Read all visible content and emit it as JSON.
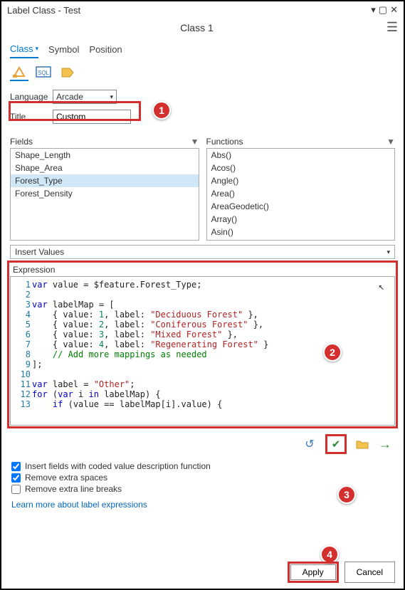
{
  "window": {
    "title": "Label Class - Test"
  },
  "subtitle": "Class 1",
  "tabs": {
    "class": "Class",
    "symbol": "Symbol",
    "position": "Position"
  },
  "form": {
    "language_label": "Language",
    "language_value": "Arcade",
    "title_label": "Title",
    "title_value": "Custom"
  },
  "fields": {
    "header": "Fields",
    "items": [
      "Shape_Length",
      "Shape_Area",
      "Forest_Type",
      "Forest_Density"
    ],
    "selected_index": 2
  },
  "functions": {
    "header": "Functions",
    "items": [
      "Abs()",
      "Acos()",
      "Angle()",
      "Area()",
      "AreaGeodetic()",
      "Array()",
      "Asin()"
    ]
  },
  "insert_values": "Insert Values",
  "expression_label": "Expression",
  "code": {
    "lines": [
      {
        "n": 1,
        "tokens": [
          {
            "t": "var ",
            "c": "kw"
          },
          {
            "t": "value = $feature.Forest_Type;",
            "c": "nm"
          }
        ]
      },
      {
        "n": 2,
        "tokens": []
      },
      {
        "n": 3,
        "tokens": [
          {
            "t": "var ",
            "c": "kw"
          },
          {
            "t": "labelMap = [",
            "c": "nm"
          }
        ]
      },
      {
        "n": 4,
        "tokens": [
          {
            "t": "    { value: ",
            "c": "nm"
          },
          {
            "t": "1",
            "c": "num"
          },
          {
            "t": ", label: ",
            "c": "nm"
          },
          {
            "t": "\"Deciduous Forest\"",
            "c": "str"
          },
          {
            "t": " },",
            "c": "nm"
          }
        ]
      },
      {
        "n": 5,
        "tokens": [
          {
            "t": "    { value: ",
            "c": "nm"
          },
          {
            "t": "2",
            "c": "num"
          },
          {
            "t": ", label: ",
            "c": "nm"
          },
          {
            "t": "\"Coniferous Forest\"",
            "c": "str"
          },
          {
            "t": " },",
            "c": "nm"
          }
        ]
      },
      {
        "n": 6,
        "tokens": [
          {
            "t": "    { value: ",
            "c": "nm"
          },
          {
            "t": "3",
            "c": "num"
          },
          {
            "t": ", label: ",
            "c": "nm"
          },
          {
            "t": "\"Mixed Forest\"",
            "c": "str"
          },
          {
            "t": " },",
            "c": "nm"
          }
        ]
      },
      {
        "n": 7,
        "tokens": [
          {
            "t": "    { value: ",
            "c": "nm"
          },
          {
            "t": "4",
            "c": "num"
          },
          {
            "t": ", label: ",
            "c": "nm"
          },
          {
            "t": "\"Regenerating Forest\"",
            "c": "str"
          },
          {
            "t": " }",
            "c": "nm"
          }
        ]
      },
      {
        "n": 8,
        "tokens": [
          {
            "t": "    // Add more mappings as needed",
            "c": "cmt"
          }
        ]
      },
      {
        "n": 9,
        "tokens": [
          {
            "t": "];",
            "c": "nm"
          }
        ]
      },
      {
        "n": 10,
        "tokens": []
      },
      {
        "n": 11,
        "tokens": [
          {
            "t": "var ",
            "c": "kw"
          },
          {
            "t": "label = ",
            "c": "nm"
          },
          {
            "t": "\"Other\"",
            "c": "str"
          },
          {
            "t": ";",
            "c": "nm"
          }
        ]
      },
      {
        "n": 12,
        "tokens": [
          {
            "t": "for ",
            "c": "kw"
          },
          {
            "t": "(",
            "c": "nm"
          },
          {
            "t": "var ",
            "c": "kw"
          },
          {
            "t": "i ",
            "c": "nm"
          },
          {
            "t": "in ",
            "c": "kw"
          },
          {
            "t": "labelMap) {",
            "c": "nm"
          }
        ]
      },
      {
        "n": 13,
        "tokens": [
          {
            "t": "    ",
            "c": "nm"
          },
          {
            "t": "if ",
            "c": "kw"
          },
          {
            "t": "(value == labelMap[i].value) {",
            "c": "nm"
          }
        ]
      }
    ]
  },
  "checks": {
    "coded": {
      "label": "Insert fields with coded value description function",
      "checked": true
    },
    "spaces": {
      "label": "Remove extra spaces",
      "checked": true
    },
    "breaks": {
      "label": "Remove extra line breaks",
      "checked": false
    }
  },
  "link": "Learn more about label expressions",
  "buttons": {
    "apply": "Apply",
    "cancel": "Cancel"
  },
  "callouts": {
    "c1": "1",
    "c2": "2",
    "c3": "3",
    "c4": "4"
  },
  "colors": {
    "highlight": "#d32f2f",
    "accent": "#0078d4"
  }
}
